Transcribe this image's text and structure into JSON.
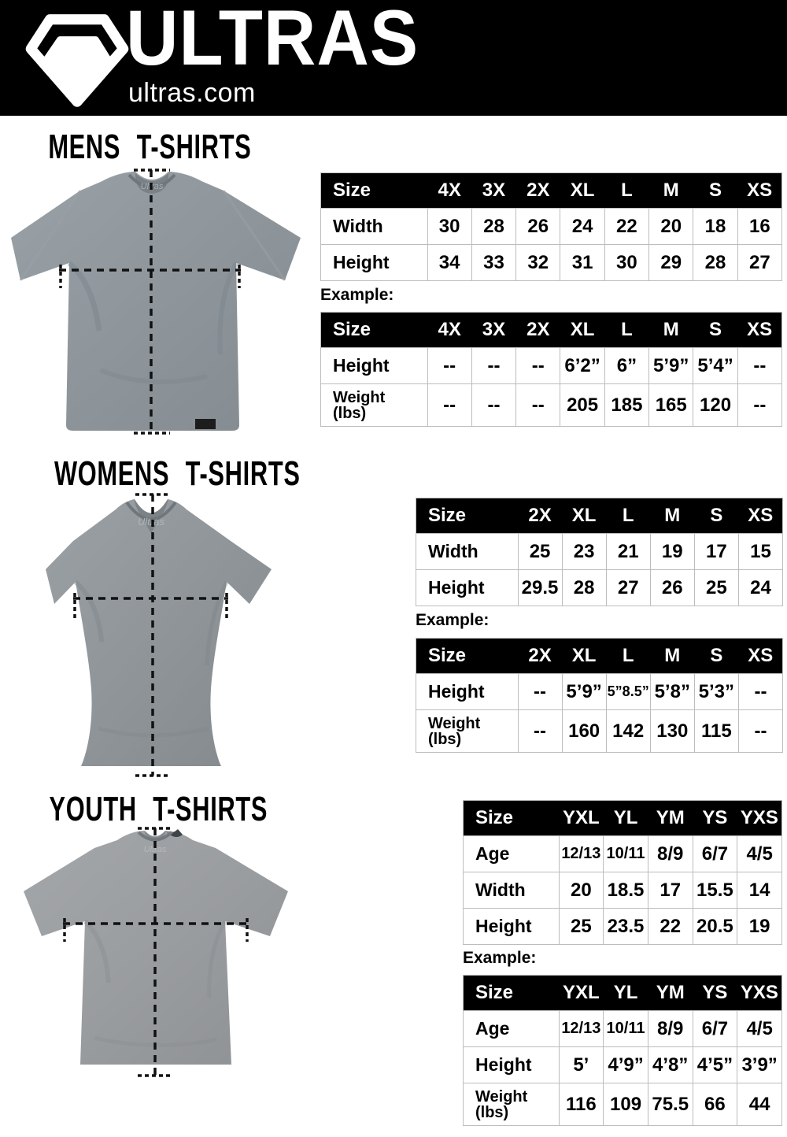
{
  "header": {
    "brand": "ULTRAS",
    "site": "ultras.com",
    "logo_icon": "pentagon-crest-icon"
  },
  "sections": [
    {
      "id": "mens",
      "title": "MENS T-SHIRTS",
      "collar_label": "Ultras",
      "example_label": "Example:",
      "size_table": {
        "header": [
          "Size",
          "4X",
          "3X",
          "2X",
          "XL",
          "L",
          "M",
          "S",
          "XS"
        ],
        "rows": [
          {
            "label": "Width",
            "values": [
              "30",
              "28",
              "26",
              "24",
              "22",
              "20",
              "18",
              "16"
            ]
          },
          {
            "label": "Height",
            "values": [
              "34",
              "33",
              "32",
              "31",
              "30",
              "29",
              "28",
              "27"
            ]
          }
        ]
      },
      "example_table": {
        "header": [
          "Size",
          "4X",
          "3X",
          "2X",
          "XL",
          "L",
          "M",
          "S",
          "XS"
        ],
        "rows": [
          {
            "label": "Height",
            "values": [
              "--",
              "--",
              "--",
              "6’2”",
              "6”",
              "5’9”",
              "5’4”",
              "--"
            ]
          },
          {
            "label": "Weight\n(lbs)",
            "values": [
              "--",
              "--",
              "--",
              "205",
              "185",
              "165",
              "120",
              "--"
            ]
          }
        ]
      }
    },
    {
      "id": "womens",
      "title": "WOMENS T-SHIRTS",
      "collar_label": "Ultras",
      "example_label": "Example:",
      "size_table": {
        "header": [
          "Size",
          "2X",
          "XL",
          "L",
          "M",
          "S",
          "XS"
        ],
        "rows": [
          {
            "label": "Width",
            "values": [
              "25",
              "23",
              "21",
              "19",
              "17",
              "15"
            ]
          },
          {
            "label": "Height",
            "values": [
              "29.5",
              "28",
              "27",
              "26",
              "25",
              "24"
            ]
          }
        ]
      },
      "example_table": {
        "header": [
          "Size",
          "2X",
          "XL",
          "L",
          "M",
          "S",
          "XS"
        ],
        "rows": [
          {
            "label": "Height",
            "values": [
              "--",
              "5’9”",
              "5”8.5”",
              "5’8”",
              "5’3”",
              "--"
            ]
          },
          {
            "label": "Weight\n(lbs)",
            "values": [
              "--",
              "160",
              "142",
              "130",
              "115",
              "--"
            ]
          }
        ]
      }
    },
    {
      "id": "youth",
      "title": "YOUTH T-SHIRTS",
      "collar_label": "Ultras",
      "example_label": "Example:",
      "size_table": {
        "header": [
          "Size",
          "YXL",
          "YL",
          "YM",
          "YS",
          "YXS"
        ],
        "rows": [
          {
            "label": "Age",
            "values": [
              "12/13",
              "10/11",
              "8/9",
              "6/7",
              "4/5"
            ]
          },
          {
            "label": "Width",
            "values": [
              "20",
              "18.5",
              "17",
              "15.5",
              "14"
            ]
          },
          {
            "label": "Height",
            "values": [
              "25",
              "23.5",
              "22",
              "20.5",
              "19"
            ]
          }
        ]
      },
      "example_table": {
        "header": [
          "Size",
          "YXL",
          "YL",
          "YM",
          "YS",
          "YXS"
        ],
        "rows": [
          {
            "label": "Age",
            "values": [
              "12/13",
              "10/11",
              "8/9",
              "6/7",
              "4/5"
            ]
          },
          {
            "label": "Height",
            "values": [
              "5’",
              "4’9”",
              "4’8”",
              "4’5”",
              "3’9”"
            ]
          },
          {
            "label": "Weight\n(lbs)",
            "values": [
              "116",
              "109",
              "75.5",
              "66",
              "44"
            ]
          }
        ]
      }
    }
  ],
  "colors": {
    "header_bg": "#000000",
    "table_header_bg": "#000000",
    "table_header_text": "#ffffff",
    "table_border": "#bdbdbd",
    "mens_shirt": "#8d959b",
    "womens_shirt": "#8f9599",
    "youth_shirt": "#9a9da0",
    "measure_line": "#111111"
  }
}
